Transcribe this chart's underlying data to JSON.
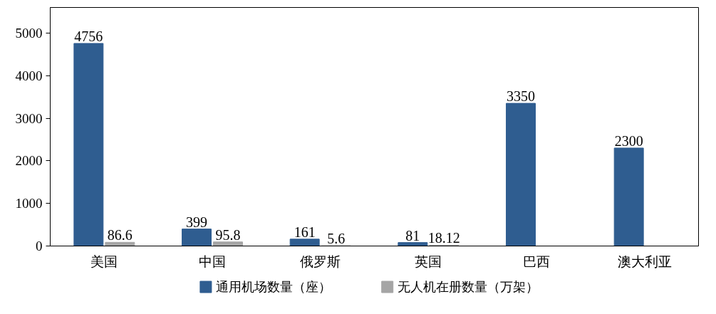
{
  "chart_data": {
    "type": "bar",
    "categories": [
      "美国",
      "中国",
      "俄罗斯",
      "英国",
      "巴西",
      "澳大利亚"
    ],
    "series": [
      {
        "name": "通用机场数量（座）",
        "color": "#2f5d90",
        "values": [
          4756,
          399,
          161,
          81,
          3350,
          2300
        ]
      },
      {
        "name": "无人机在册数量（万架）",
        "color": "#a5a5a5",
        "values": [
          86.6,
          95.8,
          5.6,
          18.12,
          null,
          null
        ]
      }
    ],
    "ylim": [
      0,
      5600
    ],
    "yticks": [
      0,
      1000,
      2000,
      3000,
      4000,
      5000
    ],
    "grid": false,
    "legend": "bottom",
    "data_labels": true
  }
}
